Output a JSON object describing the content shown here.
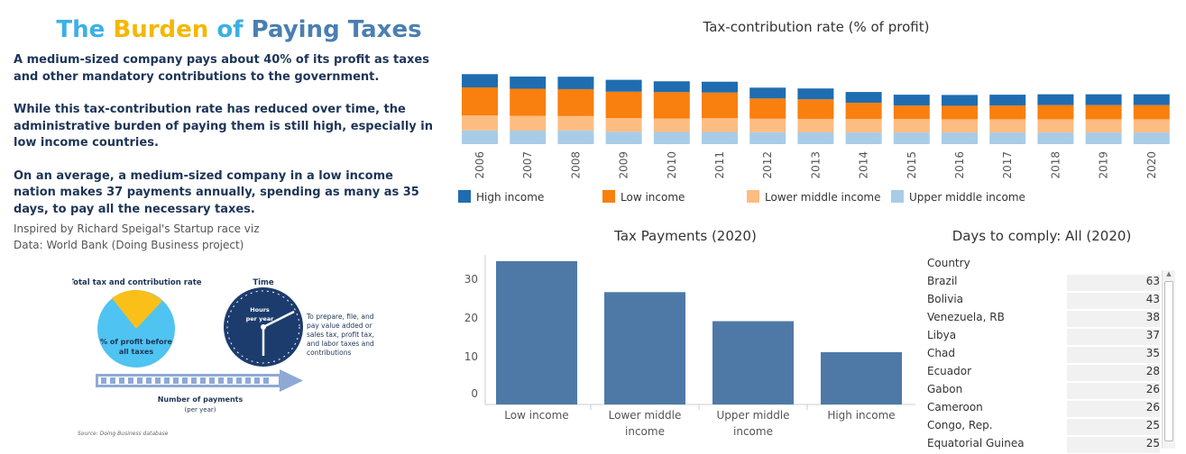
{
  "title": {
    "w1": "The",
    "w2": "Burden",
    "w3": "of",
    "w4": "Paying",
    "w5": "Taxes"
  },
  "colors": {
    "w1": "#3bb0e6",
    "w2": "#f5b700",
    "w3": "#3bb0e6",
    "w4": "#4a7fb0",
    "w5": "#4a7fb0"
  },
  "intro": [
    "A medium-sized company pays about 40% of its profit as taxes and other mandatory contributions to the government.",
    "While this tax-contribution rate has reduced over time, the administrative burden of paying them is still high, especially in low income countries.",
    "On an average, a medium-sized company in a low income nation makes 37 payments annually, spending as many as 35 days, to pay all the necessary taxes."
  ],
  "credits": [
    "Inspired by Richard Speigal's Startup race viz",
    "Data: World Bank (Doing Business project)"
  ],
  "infographic": {
    "rate_title": "Total tax and contribution rate",
    "rate_l1": "% of profit before",
    "rate_l2": "all taxes",
    "time_title": "Time",
    "clock_l1": "Hours",
    "clock_l2": "per year",
    "desc": [
      "To prepare, file, and",
      "pay value added or",
      "sales tax, profit tax,",
      "and labor taxes and",
      "contributions"
    ],
    "payments_l1": "Number of payments",
    "payments_l2": "(per year)",
    "source": "Source: Doing Business database"
  },
  "chart_data": [
    {
      "type": "bar",
      "stacked": true,
      "title": "Tax-contribution rate (% of profit)",
      "categories": [
        "2006",
        "2007",
        "2008",
        "2009",
        "2010",
        "2011",
        "2012",
        "2013",
        "2014",
        "2015",
        "2016",
        "2017",
        "2018",
        "2019",
        "2020"
      ],
      "series": [
        {
          "name": "Upper middle income",
          "color": "#a8cce8",
          "values": [
            10.2,
            10.0,
            10.1,
            9.2,
            9.0,
            9.0,
            8.8,
            8.7,
            8.6,
            8.6,
            8.6,
            8.6,
            8.6,
            8.6,
            8.6
          ]
        },
        {
          "name": "Lower middle income",
          "color": "#fdbd82",
          "values": [
            11.0,
            11.0,
            10.7,
            10.1,
            10.0,
            10.2,
            10.0,
            10.0,
            10.0,
            10.0,
            9.8,
            9.8,
            9.8,
            9.8,
            9.8
          ]
        },
        {
          "name": "Low income",
          "color": "#f97f0e",
          "values": [
            20.8,
            20.0,
            19.9,
            19.5,
            19.5,
            19.0,
            15.0,
            14.5,
            12.0,
            10.0,
            10.0,
            10.2,
            10.5,
            10.5,
            10.5
          ]
        },
        {
          "name": "High income",
          "color": "#1f6db0",
          "values": [
            9.8,
            9.0,
            9.2,
            8.8,
            8.0,
            8.0,
            8.0,
            8.0,
            8.0,
            8.0,
            8.0,
            8.0,
            8.0,
            8.0,
            8.0
          ]
        }
      ],
      "legend_order": [
        "High income",
        "Low income",
        "Lower middle income",
        "Upper middle income"
      ],
      "legend": "bottom",
      "grid": false
    },
    {
      "type": "bar",
      "title": "Tax Payments (2020)",
      "categories": [
        "Low income",
        "Lower middle income",
        "Upper middle income",
        "High income"
      ],
      "values": [
        37,
        29,
        21.5,
        13.5
      ],
      "ylim": [
        0,
        40
      ],
      "yticks": [
        0,
        10,
        20,
        30
      ],
      "color": "#4e79a7"
    },
    {
      "type": "table",
      "title": "Days to comply: All (2020)",
      "header": "Country",
      "rows": [
        {
          "country": "Brazil",
          "value": "63"
        },
        {
          "country": "Bolivia",
          "value": "43"
        },
        {
          "country": "Venezuela, RB",
          "value": "38"
        },
        {
          "country": "Libya",
          "value": "37"
        },
        {
          "country": "Chad",
          "value": "35"
        },
        {
          "country": "Ecuador",
          "value": "28"
        },
        {
          "country": "Gabon",
          "value": "26"
        },
        {
          "country": "Cameroon",
          "value": "26"
        },
        {
          "country": "Congo, Rep.",
          "value": "25"
        },
        {
          "country": "Equatorial Guinea",
          "value": "25"
        }
      ]
    }
  ]
}
